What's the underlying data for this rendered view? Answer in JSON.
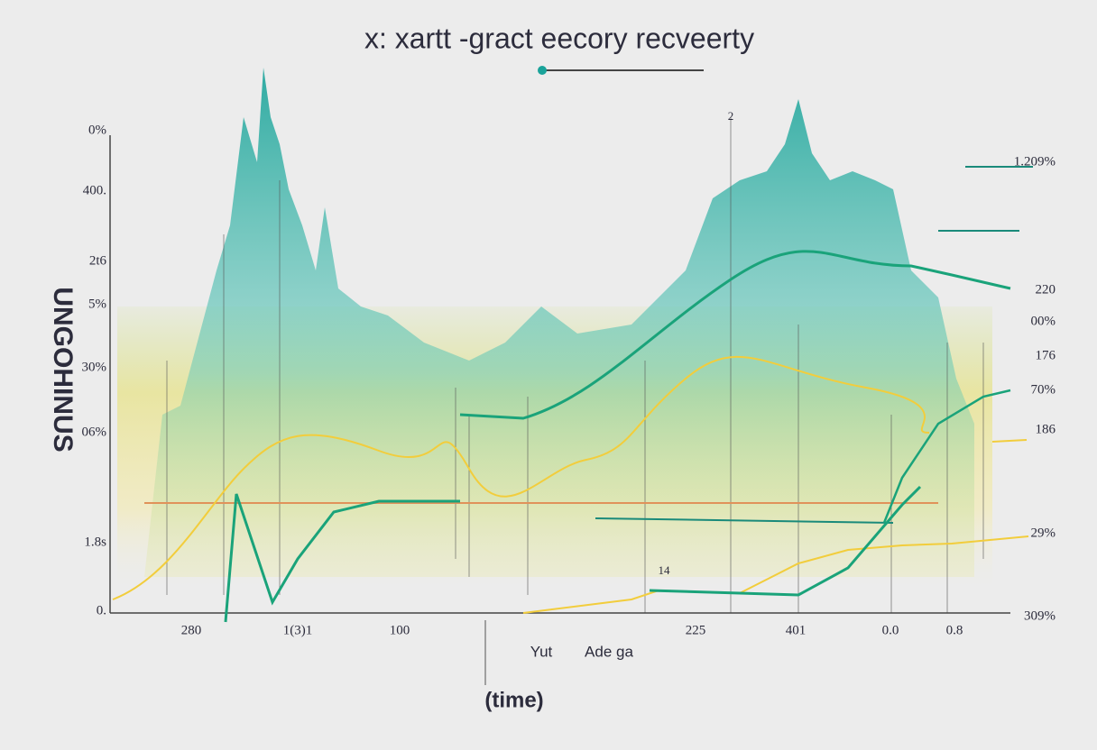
{
  "title": "x: xartt -gract eecory recveerty",
  "y_axis_label": "UNGOHINUS",
  "left_labels": [
    "0%",
    "400.",
    "2t6",
    "5%",
    "30%",
    "06%",
    "1.8s",
    "0."
  ],
  "right_labels": [
    "1.209%",
    "220",
    "00%",
    "176",
    "70%",
    "186",
    "29%",
    "309%"
  ],
  "x_labels": [
    "280",
    "1(3)1",
    "100",
    "225",
    "401",
    "0.0",
    "0.8"
  ],
  "annotations": [
    "2",
    "14"
  ],
  "legend_texts": [
    "Yut",
    "Ade ga"
  ],
  "x_axis_label": "(time)"
}
